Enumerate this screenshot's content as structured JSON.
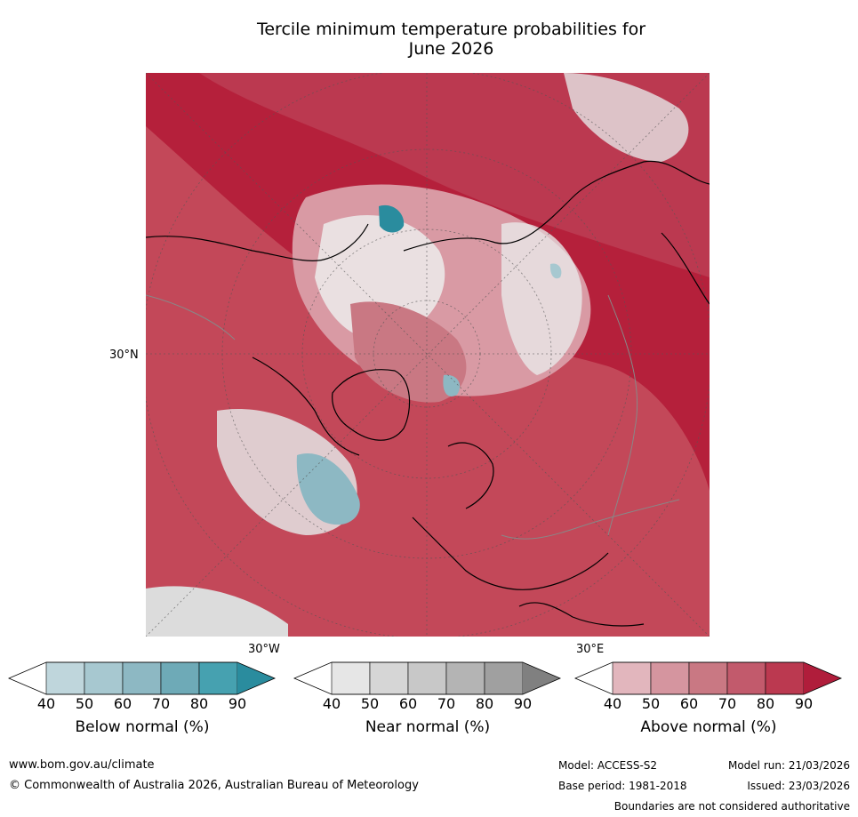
{
  "title_line1": "Tercile minimum temperature probabilities for",
  "title_line2": "June 2026",
  "map": {
    "lat_label": "30°N",
    "lon_label_west": "30°W",
    "lon_label_east": "30°E",
    "ocean_color": "#b5203b"
  },
  "colorbars": [
    {
      "label": "Below normal (%)",
      "ticks": [
        "40",
        "50",
        "60",
        "70",
        "80",
        "90"
      ],
      "colors": [
        "#ffffff",
        "#bfd6dc",
        "#a7c8d0",
        "#8db8c3",
        "#6eaab7",
        "#46a1b0",
        "#2a8c9e"
      ]
    },
    {
      "label": "Near normal (%)",
      "ticks": [
        "40",
        "50",
        "60",
        "70",
        "80",
        "90"
      ],
      "colors": [
        "#ffffff",
        "#e6e6e6",
        "#d6d6d6",
        "#c8c8c8",
        "#b4b4b4",
        "#a0a0a0",
        "#808080"
      ]
    },
    {
      "label": "Above normal (%)",
      "ticks": [
        "40",
        "50",
        "60",
        "70",
        "80",
        "90"
      ],
      "colors": [
        "#ffffff",
        "#e2b6bd",
        "#d5959f",
        "#c97883",
        "#c25a6c",
        "#bb3950",
        "#b01d3b"
      ]
    }
  ],
  "footer": {
    "website": "www.bom.gov.au/climate",
    "copyright": "© Commonwealth of Australia 2026, Australian Bureau of Meteorology",
    "model": "Model: ACCESS-S2",
    "base_period": "Base period: 1981-2018",
    "model_run": "Model run: 21/03/2026",
    "issued": "Issued: 23/03/2026",
    "disclaimer": "Boundaries are not considered authoritative"
  }
}
